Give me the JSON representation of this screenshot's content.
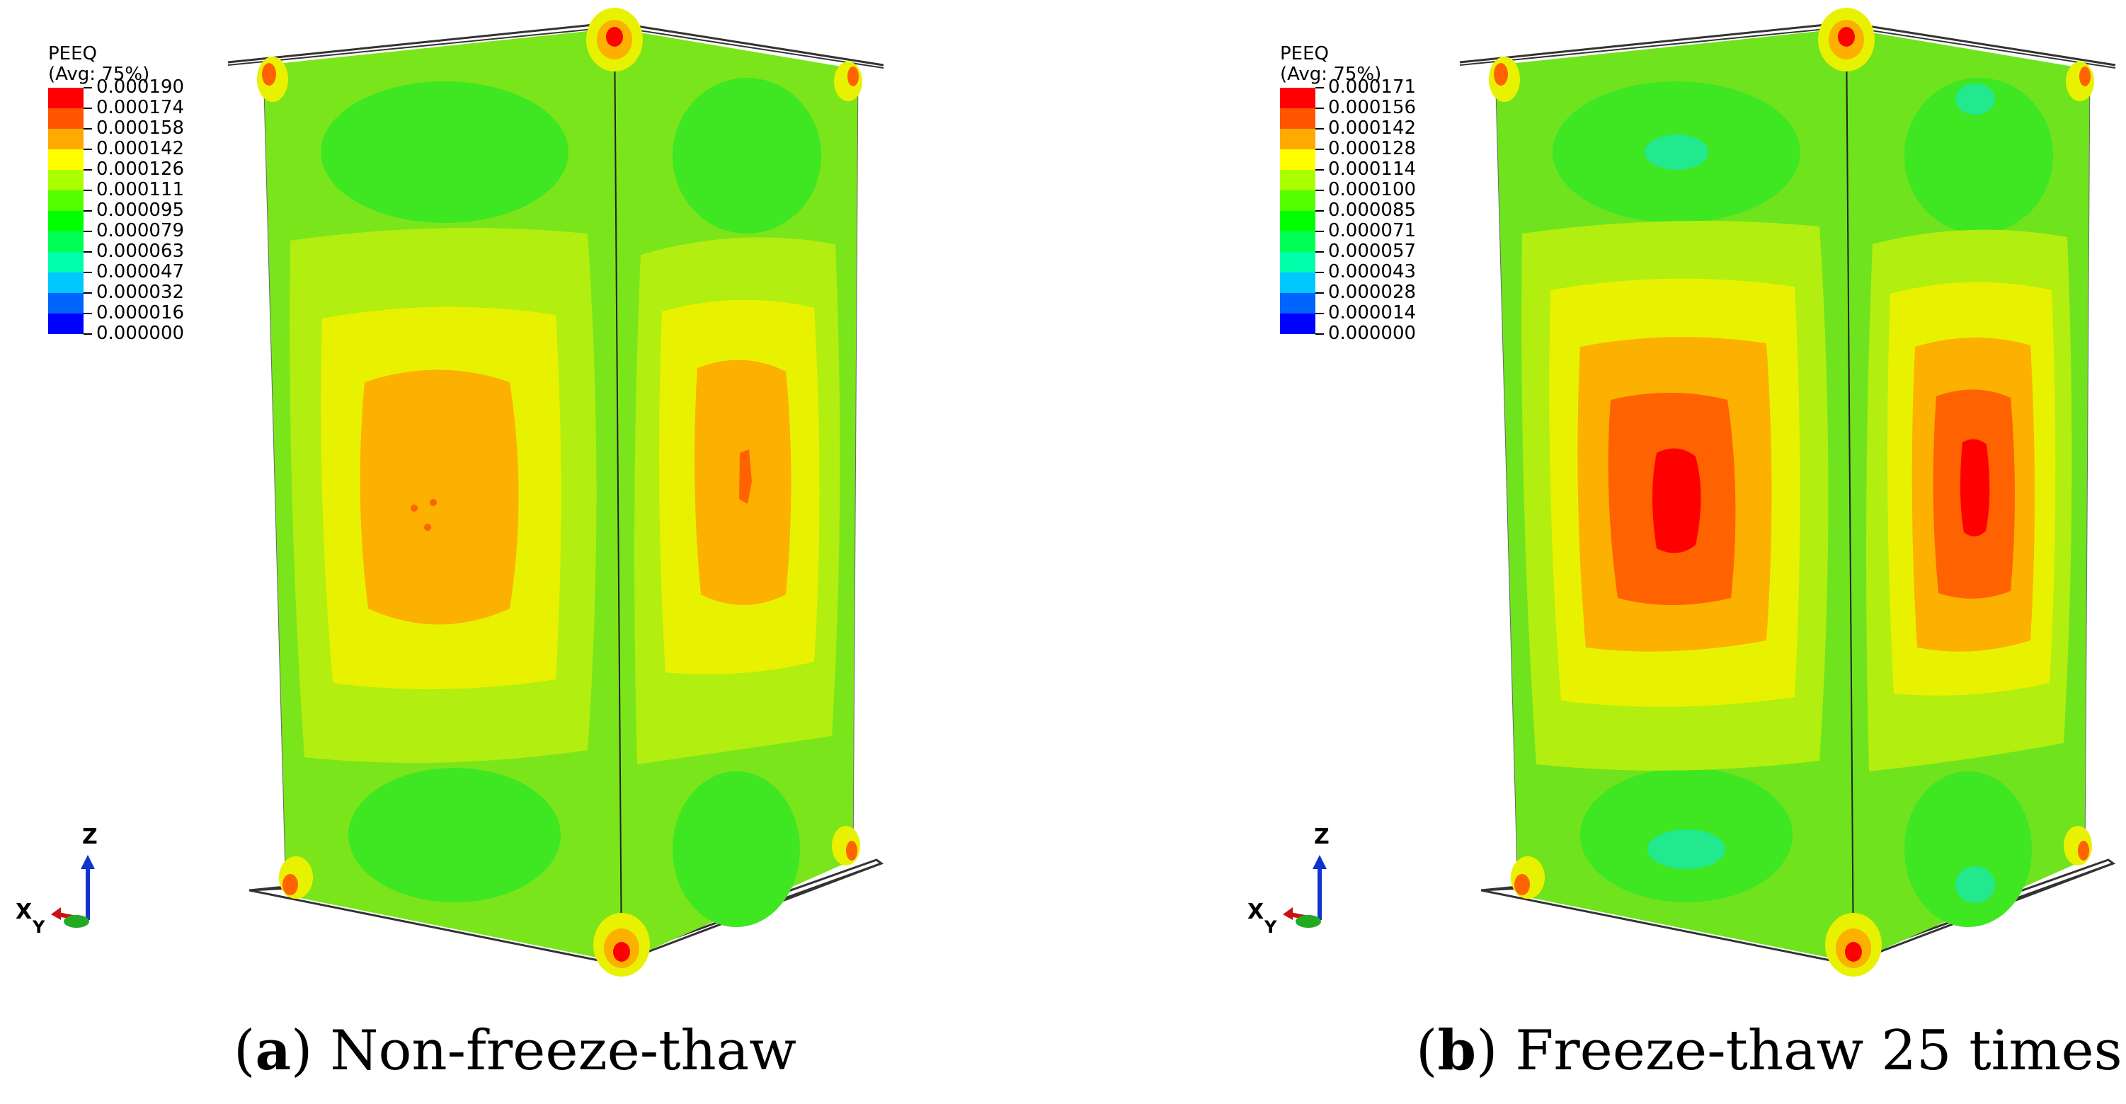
{
  "legend_colors": [
    "#ff0000",
    "#ff5500",
    "#ffaa00",
    "#ffff00",
    "#aaff00",
    "#55ff00",
    "#00ff00",
    "#00ff55",
    "#00ffaa",
    "#00c8ff",
    "#0064ff",
    "#0000ff"
  ],
  "panels": [
    {
      "legend_title": "PEEQ",
      "legend_subtitle": "(Avg: 75%)",
      "legend_values": [
        "0.000190",
        "0.000174",
        "0.000158",
        "0.000142",
        "0.000126",
        "0.000111",
        "0.000095",
        "0.000079",
        "0.000063",
        "0.000047",
        "0.000032",
        "0.000016",
        "0.000000"
      ],
      "caption_letter": "a",
      "caption_open": "(",
      "caption_close": ")",
      "caption_text": " Non-freeze-thaw",
      "peak_level": "0.000142"
    },
    {
      "legend_title": "PEEQ",
      "legend_subtitle": "(Avg: 75%)",
      "legend_values": [
        "0.000171",
        "0.000156",
        "0.000142",
        "0.000128",
        "0.000114",
        "0.000100",
        "0.000085",
        "0.000071",
        "0.000057",
        "0.000043",
        "0.000028",
        "0.000014",
        "0.000000"
      ],
      "caption_letter": "b",
      "caption_open": "(",
      "caption_close": ")",
      "caption_text": " Freeze-thaw 25 times",
      "peak_level": "0.000171"
    }
  ],
  "triad": {
    "z_label": "Z",
    "x_label": "X",
    "y_label": "Y"
  },
  "colors": {
    "green_base": "#7be51c",
    "inner_green": "#3fe622",
    "yellow_green": "#b2ee10",
    "yellow": "#e8f200",
    "orange": "#fcb000",
    "dark_orange": "#ff6200",
    "red": "#ff0000"
  }
}
